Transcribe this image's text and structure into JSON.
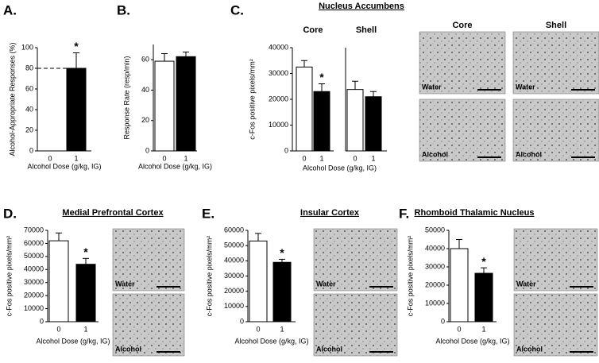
{
  "chart_data": [
    {
      "type": "bar",
      "panel": "A.",
      "y_label": "Alcohol-Appropriate Responses (%)",
      "x_label": "Alcohol Dose (g/kg, IG)",
      "categories": [
        "0",
        "1"
      ],
      "values": [
        0,
        80
      ],
      "errors": [
        0,
        15
      ],
      "colors": [
        "#ffffff",
        "#000000"
      ],
      "ylim": [
        0,
        100
      ],
      "yticks": [
        0,
        20,
        40,
        60,
        80,
        100
      ],
      "reference_line": 80,
      "annotations": [
        {
          "text": "*",
          "index": 1
        }
      ]
    },
    {
      "type": "bar",
      "panel": "B.",
      "y_label": "Response Rate (resp/min)",
      "x_label": "Alcohol Dose (g/kg, IG)",
      "categories": [
        "0",
        "1"
      ],
      "values": [
        59,
        62
      ],
      "errors": [
        5,
        3
      ],
      "colors": [
        "#ffffff",
        "#000000"
      ],
      "ylim": [
        0,
        70
      ],
      "yticks": [
        0,
        20,
        40,
        60
      ]
    },
    {
      "type": "bar",
      "panel": "C.",
      "title": "Nucleus Accumbens",
      "y_label": "c-Fos positive pixels/mm²",
      "x_label": "Alcohol Dose (g/kg, IG)",
      "categories": [
        "0",
        "1"
      ],
      "colors": [
        "#ffffff",
        "#000000"
      ],
      "groups": [
        {
          "name": "Core",
          "values": [
            32500,
            23000
          ],
          "errors": [
            2500,
            3000
          ]
        },
        {
          "name": "Shell",
          "values": [
            23800,
            21000
          ],
          "errors": [
            3200,
            2000
          ]
        }
      ],
      "ylim": [
        0,
        40000
      ],
      "yticks": [
        0,
        10000,
        20000,
        30000,
        40000
      ],
      "annotations": [
        {
          "text": "*",
          "group": 0,
          "index": 1
        }
      ],
      "image_columns": [
        "Core",
        "Shell"
      ],
      "image_rows": [
        "Water",
        "Alcohol"
      ]
    },
    {
      "type": "bar",
      "panel": "D.",
      "title": "Medial Prefrontal Cortex",
      "y_label": "c-Fos positive pixels/mm²",
      "x_label": "Alcohol Dose (g/kg, IG)",
      "categories": [
        "0",
        "1"
      ],
      "values": [
        62000,
        44000
      ],
      "errors": [
        6000,
        4500
      ],
      "colors": [
        "#ffffff",
        "#000000"
      ],
      "ylim": [
        0,
        70000
      ],
      "yticks": [
        0,
        10000,
        20000,
        30000,
        40000,
        50000,
        60000,
        70000
      ],
      "annotations": [
        {
          "text": "*",
          "index": 1
        }
      ],
      "image_rows": [
        "Water",
        "Alcohol"
      ]
    },
    {
      "type": "bar",
      "panel": "E.",
      "title": "Insular Cortex",
      "y_label": "c-Fos positive pixels/mm²",
      "x_label": "Alcohol Dose (g/kg, IG)",
      "categories": [
        "0",
        "1"
      ],
      "values": [
        53000,
        39000
      ],
      "errors": [
        5000,
        2000
      ],
      "colors": [
        "#ffffff",
        "#000000"
      ],
      "ylim": [
        0,
        60000
      ],
      "yticks": [
        0,
        10000,
        20000,
        30000,
        40000,
        50000,
        60000
      ],
      "annotations": [
        {
          "text": "*",
          "index": 1
        }
      ],
      "image_rows": [
        "Water",
        "Alcohol"
      ]
    },
    {
      "type": "bar",
      "panel": "F.",
      "title": "Rhomboid Thalamic Nucleus",
      "y_label": "c-Fos positive pixels/mm²",
      "x_label": "Alcohol Dose (g/kg, IG)",
      "categories": [
        "0",
        "1"
      ],
      "values": [
        40000,
        26500
      ],
      "errors": [
        5000,
        3000
      ],
      "colors": [
        "#ffffff",
        "#000000"
      ],
      "ylim": [
        0,
        50000
      ],
      "yticks": [
        0,
        10000,
        20000,
        30000,
        40000,
        50000
      ],
      "annotations": [
        {
          "text": "*",
          "index": 1
        }
      ],
      "image_rows": [
        "Water",
        "Alcohol"
      ]
    }
  ]
}
